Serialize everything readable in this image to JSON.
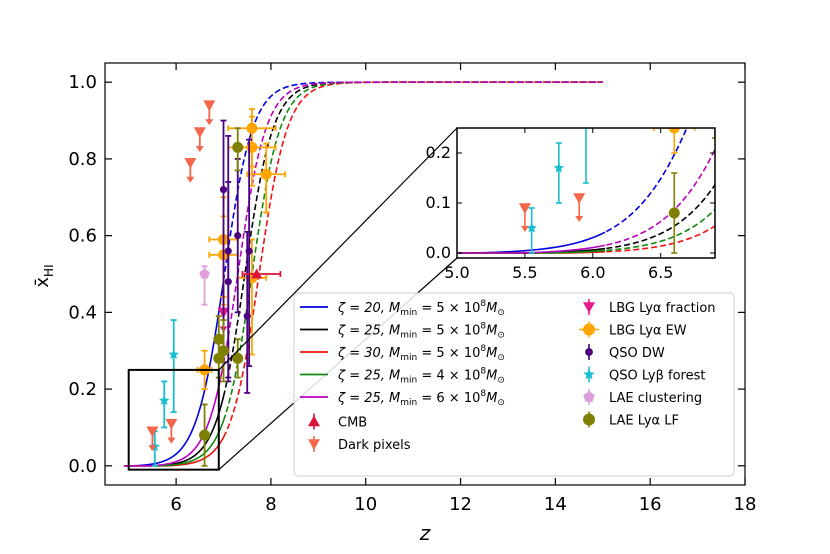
{
  "chart_data": {
    "type": "line",
    "xlabel": "z",
    "ylabel": "x̄",
    "ylabel_sub": "HI",
    "xlim": [
      4.5,
      18
    ],
    "ylim": [
      -0.05,
      1.05
    ],
    "xticks": [
      6,
      8,
      10,
      12,
      14,
      16,
      18
    ],
    "yticks": [
      0.0,
      0.2,
      0.4,
      0.6,
      0.8,
      1.0
    ],
    "xtick_labels": [
      "6",
      "8",
      "10",
      "12",
      "14",
      "16",
      "18"
    ],
    "ytick_labels": [
      "0.0",
      "0.2",
      "0.4",
      "0.6",
      "0.8",
      "1.0"
    ],
    "models": [
      {
        "name": "ζ = 20, M_min = 5×10^8 M_⊙",
        "label_a": "ζ = 20, ",
        "label_b": "M",
        "label_c": "min",
        "label_d": " = 5 × 10",
        "label_e": "8",
        "label_f": "M",
        "label_g": "⊙",
        "color": "#0000dd",
        "z50": 7.02,
        "zstart": 5.1
      },
      {
        "name": "ζ = 25, M_min = 5×10^8 M_⊙",
        "label_a": "ζ = 25, ",
        "label_b": "M",
        "label_c": "min",
        "label_d": " = 5 × 10",
        "label_e": "8",
        "label_f": "M",
        "label_g": "⊙",
        "color": "#000000",
        "z50": 7.45,
        "zstart": 5.55
      },
      {
        "name": "ζ = 30, M_min = 5×10^8 M_⊙",
        "label_a": "ζ = 30, ",
        "label_b": "M",
        "label_c": "min",
        "label_d": " = 5 × 10",
        "label_e": "8",
        "label_f": "M",
        "label_g": "⊙",
        "color": "#ee1111",
        "z50": 7.75,
        "zstart": 5.8
      },
      {
        "name": "ζ = 25, M_min = 4×10^8 M_⊙",
        "label_a": "ζ = 25, ",
        "label_b": "M",
        "label_c": "min",
        "label_d": " = 4 × 10",
        "label_e": "8",
        "label_f": "M",
        "label_g": "⊙",
        "color": "#118811",
        "z50": 7.6,
        "zstart": 5.65
      },
      {
        "name": "ζ = 25, M_min = 6×10^8 M_⊙",
        "label_a": "ζ = 25, ",
        "label_b": "M",
        "label_c": "min",
        "label_d": " = 6 × 10",
        "label_e": "8",
        "label_f": "M",
        "label_g": "⊙",
        "color": "#bb00bb",
        "z50": 7.3,
        "zstart": 5.45
      }
    ],
    "curve_width": 0.6,
    "curve_end_z": 15,
    "solid_end_z": 7.0,
    "observations": [
      {
        "name": "LBG Lyα fraction",
        "color": "#e8198b",
        "marker": "triangle-down",
        "points": [
          {
            "z": 7.0,
            "y": 0.4,
            "err_lo": 0.0,
            "err_hi": 0.0,
            "upper": true
          }
        ]
      },
      {
        "name": "LBG Lyα EW",
        "color": "#ffa500",
        "marker": "circle",
        "points": [
          {
            "z": 6.6,
            "y": 0.25,
            "err_lo": 0.05,
            "err_hi": 0.05,
            "xerr": 0.15
          },
          {
            "z": 7.0,
            "y": 0.59,
            "err_lo": 0.15,
            "err_hi": 0.11,
            "xerr": 0.3
          },
          {
            "z": 7.0,
            "y": 0.55,
            "err_lo": 0.13,
            "err_hi": 0.1,
            "xerr": 0.3
          },
          {
            "z": 7.6,
            "y": 0.88,
            "err_lo": 0.1,
            "err_hi": 0.05,
            "xerr": 0.5
          },
          {
            "z": 7.6,
            "y": 0.83,
            "err_lo": 0.1,
            "err_hi": 0.08,
            "xerr": 0.5
          },
          {
            "z": 7.9,
            "y": 0.76,
            "err_lo": 0.1,
            "err_hi": 0.08,
            "xerr": 0.4
          },
          {
            "z": 7.6,
            "y": 0.49,
            "err_lo": 0.2,
            "err_hi": 0.1,
            "xerr": 0.3
          }
        ]
      },
      {
        "name": "QSO DW",
        "color": "#4b0082",
        "marker": "circle-small",
        "points": [
          {
            "z": 7.0,
            "y": 0.72,
            "err_lo": 0.45,
            "err_hi": 0.18,
            "xerr": 0
          },
          {
            "z": 7.1,
            "y": 0.56,
            "err_lo": 0.33,
            "err_hi": 0.3,
            "xerr": 0
          },
          {
            "z": 7.1,
            "y": 0.48,
            "err_lo": 0.26,
            "err_hi": 0.26,
            "xerr": 0
          },
          {
            "z": 7.3,
            "y": 0.6,
            "err_lo": 0.2,
            "err_hi": 0.2,
            "xerr": 0
          },
          {
            "z": 7.5,
            "y": 0.39,
            "err_lo": 0.2,
            "err_hi": 0.22,
            "xerr": 0
          },
          {
            "z": 7.54,
            "y": 0.56,
            "err_lo": 0.3,
            "err_hi": 0.29,
            "xerr": 0
          }
        ]
      },
      {
        "name": "QSO Lyβ forest",
        "color": "#17becf",
        "marker": "star",
        "points": [
          {
            "z": 5.55,
            "y": 0.05,
            "err_lo": 0.05,
            "err_hi": 0.04,
            "xerr": 0
          },
          {
            "z": 5.75,
            "y": 0.17,
            "err_lo": 0.07,
            "err_hi": 0.05,
            "xerr": 0
          },
          {
            "z": 5.95,
            "y": 0.29,
            "err_lo": 0.15,
            "err_hi": 0.09,
            "xerr": 0
          }
        ]
      },
      {
        "name": "LAE clustering",
        "color": "#dda0dd",
        "marker": "pentagon",
        "points": [
          {
            "z": 6.6,
            "y": 0.5,
            "err_lo": 0.08,
            "err_hi": 0.02,
            "xerr": 0
          }
        ]
      },
      {
        "name": "LAE Lyα LF",
        "color": "#808000",
        "marker": "circle",
        "points": [
          {
            "z": 6.6,
            "y": 0.08,
            "err_lo": 0.08,
            "err_hi": 0.08,
            "xerr": 0
          },
          {
            "z": 6.9,
            "y": 0.28,
            "err_lo": 0.05,
            "err_hi": 0.05,
            "xerr": 0
          },
          {
            "z": 6.9,
            "y": 0.33,
            "err_lo": 0.05,
            "err_hi": 0.06,
            "xerr": 0
          },
          {
            "z": 7.0,
            "y": 0.3,
            "err_lo": 0.08,
            "err_hi": 0.08,
            "xerr": 0
          },
          {
            "z": 7.3,
            "y": 0.28,
            "err_lo": 0.05,
            "err_hi": 0.05,
            "xerr": 0
          },
          {
            "z": 7.3,
            "y": 0.83,
            "err_lo": 0.06,
            "err_hi": 0.05,
            "xerr": 0
          }
        ]
      },
      {
        "name": "CMB",
        "color": "#dc143c",
        "marker": "triangle-up",
        "points": [
          {
            "z": 7.7,
            "y": 0.5,
            "err_lo": 0,
            "err_hi": 0,
            "xerr_lo": 0.3,
            "xerr_hi": 0.5
          }
        ]
      },
      {
        "name": "Dark pixels",
        "color": "#f4664a",
        "marker": "triangle-down",
        "points": [
          {
            "z": 5.5,
            "y": 0.09,
            "upper": true
          },
          {
            "z": 5.9,
            "y": 0.11,
            "upper": true
          },
          {
            "z": 6.3,
            "y": 0.79,
            "upper": true
          },
          {
            "z": 6.5,
            "y": 0.87,
            "upper": true
          },
          {
            "z": 6.7,
            "y": 0.94,
            "upper": true
          }
        ]
      }
    ],
    "zoom_box": {
      "xlim": [
        5.0,
        6.9
      ],
      "ylim": [
        -0.01,
        0.25
      ]
    },
    "inset": {
      "xlim": [
        5.0,
        6.9
      ],
      "ylim": [
        -0.01,
        0.25
      ],
      "xticks": [
        5.0,
        5.5,
        6.0,
        6.5
      ],
      "yticks": [
        0.0,
        0.1,
        0.2
      ],
      "xtick_labels": [
        "5.0",
        "5.5",
        "6.0",
        "6.5"
      ],
      "ytick_labels": [
        "0.0",
        "0.1",
        "0.2"
      ]
    },
    "legend_left_order": [
      0,
      1,
      2,
      3,
      4,
      "CMB",
      "Dark pixels"
    ],
    "legend_right_order": [
      "LBG Lyα fraction",
      "LBG Lyα EW",
      "QSO DW",
      "QSO Lyβ forest",
      "LAE clustering",
      "LAE Lyα LF"
    ]
  }
}
